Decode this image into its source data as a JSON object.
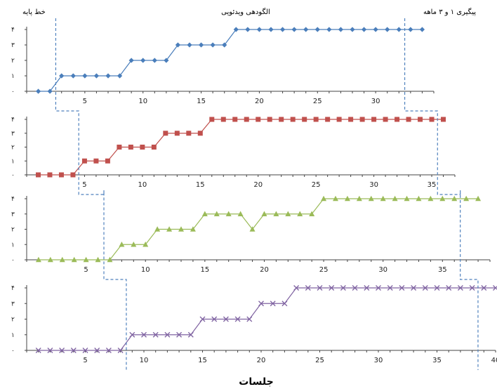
{
  "chart_data": {
    "type": "line",
    "xlabel": "جلسات",
    "phase_labels": [
      "خط پایه",
      "الگودهی ویدئویی",
      "پیگیری ۱ و ۳ ماهه"
    ],
    "colors": [
      "#4a7ebb",
      "#c0504d",
      "#9bbb59",
      "#8064a2"
    ],
    "phase_line_color": "#4f81bd",
    "panels": [
      {
        "series_name": "",
        "marker": "diamond",
        "x": [
          1,
          2,
          3,
          4,
          5,
          6,
          7,
          8,
          9,
          10,
          11,
          12,
          13,
          14,
          15,
          16,
          17,
          18,
          19,
          20,
          21,
          22,
          23,
          24,
          25,
          26,
          27,
          28,
          29,
          30,
          31,
          32,
          33,
          34
        ],
        "y": [
          0,
          0,
          1,
          1,
          1,
          1,
          1,
          1,
          2,
          2,
          2,
          2,
          3,
          3,
          3,
          3,
          3,
          4,
          4,
          4,
          4,
          4,
          4,
          4,
          4,
          4,
          4,
          4,
          4,
          4,
          4,
          4,
          4,
          4
        ],
        "xticks": [
          [
            "5",
            5
          ],
          [
            "10",
            10
          ],
          [
            "15",
            15
          ],
          [
            "20",
            20
          ],
          [
            "25",
            25
          ],
          [
            "30",
            30
          ]
        ],
        "xlim": [
          0,
          35
        ],
        "ylim": [
          0,
          4
        ],
        "yticks": [
          "۰",
          "۱",
          "۲",
          "۳",
          "۴"
        ],
        "phase_breaks": [
          2.5,
          32.5
        ]
      },
      {
        "series_name": "",
        "marker": "square",
        "x": [
          1,
          2,
          3,
          4,
          5,
          6,
          7,
          8,
          9,
          10,
          11,
          12,
          13,
          14,
          15,
          16,
          17,
          18,
          19,
          20,
          21,
          22,
          23,
          24,
          25,
          26,
          27,
          28,
          29,
          30,
          31,
          32,
          33,
          34,
          35,
          36
        ],
        "y": [
          0,
          0,
          0,
          0,
          1,
          1,
          1,
          2,
          2,
          2,
          2,
          3,
          3,
          3,
          3,
          4,
          4,
          4,
          4,
          4,
          4,
          4,
          4,
          4,
          4,
          4,
          4,
          4,
          4,
          4,
          4,
          4,
          4,
          4,
          4,
          4
        ],
        "xticks": [
          [
            "5",
            5
          ],
          [
            "10",
            10
          ],
          [
            "15",
            15
          ],
          [
            "20",
            20
          ],
          [
            "25",
            25
          ],
          [
            "30",
            30
          ],
          [
            "35",
            35
          ]
        ],
        "xlim": [
          0,
          37
        ],
        "ylim": [
          0,
          4
        ],
        "yticks": [
          "۰",
          "۱",
          "۲",
          "۳",
          "۴"
        ],
        "phase_breaks": [
          4.5,
          35.5
        ]
      },
      {
        "series_name": "",
        "marker": "triangle",
        "x": [
          1,
          2,
          3,
          4,
          5,
          6,
          7,
          8,
          9,
          10,
          11,
          12,
          13,
          14,
          15,
          16,
          17,
          18,
          19,
          20,
          21,
          22,
          23,
          24,
          25,
          26,
          27,
          28,
          29,
          30,
          31,
          32,
          33,
          34,
          35,
          36,
          37,
          38
        ],
        "y": [
          0,
          0,
          0,
          0,
          0,
          0,
          0,
          1,
          1,
          1,
          2,
          2,
          2,
          2,
          3,
          3,
          3,
          3,
          2,
          3,
          3,
          3,
          3,
          3,
          4,
          4,
          4,
          4,
          4,
          4,
          4,
          4,
          4,
          4,
          4,
          4,
          4,
          4
        ],
        "xticks": [
          [
            "5",
            5
          ],
          [
            "10",
            10
          ],
          [
            "15",
            15
          ],
          [
            "20",
            20
          ],
          [
            "25",
            25
          ],
          [
            "30",
            30
          ],
          [
            "35",
            35
          ]
        ],
        "xlim": [
          0,
          39
        ],
        "ylim": [
          0,
          4
        ],
        "yticks": [
          "۰",
          "۱",
          "۲",
          "۳",
          "۴"
        ],
        "phase_breaks": [
          6.5,
          36.5
        ]
      },
      {
        "series_name": "",
        "marker": "cross",
        "x": [
          1,
          2,
          3,
          4,
          5,
          6,
          7,
          8,
          9,
          10,
          11,
          12,
          13,
          14,
          15,
          16,
          17,
          18,
          19,
          20,
          21,
          22,
          23,
          24,
          25,
          26,
          27,
          28,
          29,
          30,
          31,
          32,
          33,
          34,
          35,
          36,
          37,
          38,
          39,
          40
        ],
        "y": [
          0,
          0,
          0,
          0,
          0,
          0,
          0,
          0,
          1,
          1,
          1,
          1,
          1,
          1,
          2,
          2,
          2,
          2,
          2,
          3,
          3,
          3,
          4,
          4,
          4,
          4,
          4,
          4,
          4,
          4,
          4,
          4,
          4,
          4,
          4,
          4,
          4,
          4,
          4,
          4
        ],
        "xticks": [
          [
            "5",
            5
          ],
          [
            "10",
            10
          ],
          [
            "15",
            15
          ],
          [
            "20",
            20
          ],
          [
            "25",
            25
          ],
          [
            "30",
            30
          ],
          [
            "35",
            35
          ],
          [
            "40",
            40
          ]
        ],
        "xlim": [
          0,
          40
        ],
        "ylim": [
          0,
          4
        ],
        "yticks": [
          "۰",
          "۱",
          "۲",
          "۳",
          "۴"
        ],
        "phase_breaks": [
          8.5,
          38.5
        ]
      }
    ]
  }
}
